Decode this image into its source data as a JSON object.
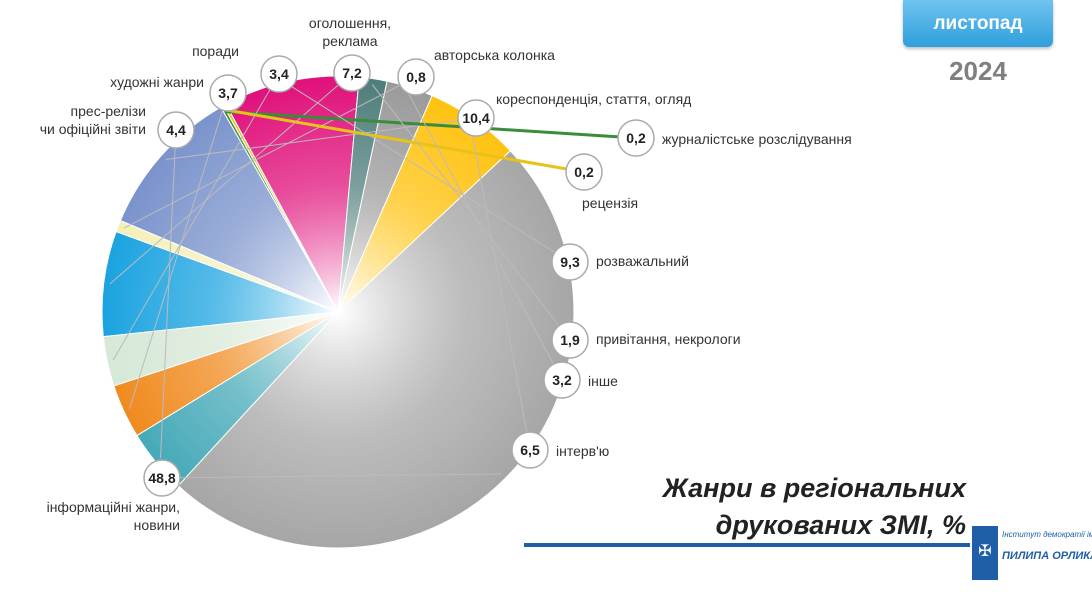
{
  "header": {
    "month": "листопад",
    "year": "2024"
  },
  "chart_data": {
    "type": "pie",
    "title": "Жанри в регіональних друкованих ЗМІ, %",
    "title_lines": [
      "Жанри в регіональних",
      "друкованих ЗМІ, %"
    ],
    "slices": [
      {
        "label": "оголошення, реклама",
        "label_lines": [
          "оголошення,",
          "реклама"
        ],
        "value": 7.2,
        "value_text": "7,2",
        "color": "#1aa3e0"
      },
      {
        "label": "авторська колонка",
        "label_lines": [
          "авторська колонка"
        ],
        "value": 0.8,
        "value_text": "0,8",
        "color": "#f3f0b8"
      },
      {
        "label": "кореспонденція, стаття, огляд",
        "label_lines": [
          "кореспонденція, стаття, огляд"
        ],
        "value": 10.4,
        "value_text": "10,4",
        "color": "#7a93cc"
      },
      {
        "label": "журналістське розслідування",
        "label_lines": [
          "журналістське розслідування"
        ],
        "value": 0.2,
        "value_text": "0,2",
        "color": "#3a8c3a"
      },
      {
        "label": "рецензія",
        "label_lines": [
          "рецензія"
        ],
        "value": 0.2,
        "value_text": "0,2",
        "color": "#e6c21a"
      },
      {
        "label": "розважальний",
        "label_lines": [
          "розважальний"
        ],
        "value": 9.3,
        "value_text": "9,3",
        "color": "#e0107a"
      },
      {
        "label": "привітання, некрологи",
        "label_lines": [
          "привітання, некрологи"
        ],
        "value": 1.9,
        "value_text": "1,9",
        "color": "#4e7d7a"
      },
      {
        "label": "інше",
        "label_lines": [
          "інше"
        ],
        "value": 3.2,
        "value_text": "3,2",
        "color": "#9a9a9a"
      },
      {
        "label": "інтерв'ю",
        "label_lines": [
          "інтерв'ю"
        ],
        "value": 6.5,
        "value_text": "6,5",
        "color": "#ffc20e"
      },
      {
        "label": "інформаційні жанри, новини",
        "label_lines": [
          "інформаційні жанри,",
          "новини"
        ],
        "value": 48.8,
        "value_text": "48,8",
        "color": "#a6a6a6"
      },
      {
        "label": "прес-релізи чи офіційні звіти",
        "label_lines": [
          "прес-релізи",
          "чи офіційні звіти"
        ],
        "value": 4.4,
        "value_text": "4,4",
        "color": "#45a9b8"
      },
      {
        "label": "художні жанри",
        "label_lines": [
          "художні жанри"
        ],
        "value": 3.7,
        "value_text": "3,7",
        "color": "#f08a1e"
      },
      {
        "label": "поради",
        "label_lines": [
          "поради"
        ],
        "value": 3.4,
        "value_text": "3,4",
        "color": "#d6e8d6"
      }
    ]
  },
  "logo": {
    "line1": "Інститут демократії імені",
    "line2": "ПИЛИПА ОРЛИКА"
  }
}
